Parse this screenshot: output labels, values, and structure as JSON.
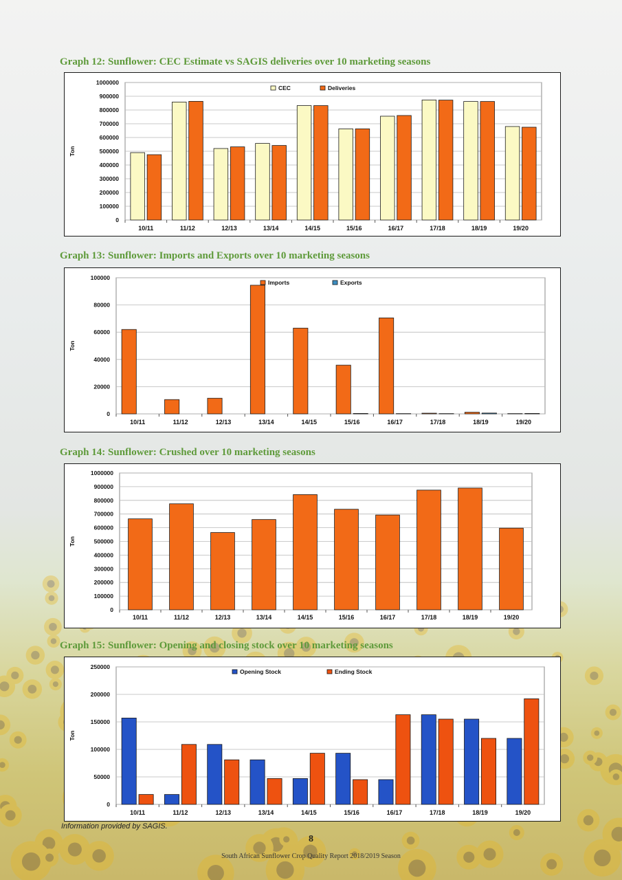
{
  "colors": {
    "heading": "#5e9a3a",
    "orange": "#f26a17",
    "cream": "#fbf9c4",
    "blue": "#2453c7"
  },
  "chart_data": [
    {
      "type": "bar",
      "heading": "Graph 12: Sunflower: CEC Estimate vs SAGIS deliveries over 10 marketing seasons",
      "ylabel": "Ton",
      "ylim": [
        0,
        1000000
      ],
      "yticks": [
        0,
        100000,
        200000,
        300000,
        400000,
        500000,
        600000,
        700000,
        800000,
        900000,
        1000000
      ],
      "categories": [
        "10/11",
        "11/12",
        "12/13",
        "13/14",
        "14/15",
        "15/16",
        "16/17",
        "17/18",
        "18/19",
        "19/20"
      ],
      "series": [
        {
          "name": "CEC",
          "color": "#fbf9c4",
          "values": [
            490000,
            858000,
            520000,
            557000,
            832000,
            663000,
            755000,
            873000,
            862000,
            680000
          ]
        },
        {
          "name": "Deliveries",
          "color": "#f26a17",
          "values": [
            475000,
            863000,
            532000,
            542000,
            832000,
            663000,
            760000,
            872000,
            862000,
            675000
          ]
        }
      ],
      "legend": "top-center",
      "grid": true
    },
    {
      "type": "bar",
      "heading": "Graph 13: Sunflower: Imports and Exports over 10 marketing seasons",
      "ylabel": "Ton",
      "ylim": [
        0,
        100000
      ],
      "yticks": [
        0,
        20000,
        40000,
        60000,
        80000,
        100000
      ],
      "categories": [
        "10/11",
        "11/12",
        "12/13",
        "13/14",
        "14/15",
        "15/16",
        "16/17",
        "17/18",
        "18/19",
        "19/20"
      ],
      "series": [
        {
          "name": "Imports",
          "color": "#f26a17",
          "values": [
            62000,
            10500,
            11500,
            94500,
            63000,
            35800,
            70500,
            500,
            1200,
            200
          ]
        },
        {
          "name": "Exports",
          "color": "#3d8ec0",
          "values": [
            0,
            0,
            0,
            0,
            0,
            300,
            200,
            200,
            600,
            300
          ]
        }
      ],
      "legend": "top-center",
      "grid": true
    },
    {
      "type": "bar",
      "heading": "Graph 14: Sunflower: Crushed over 10 marketing seasons",
      "ylabel": "Ton",
      "ylim": [
        0,
        1000000
      ],
      "yticks": [
        0,
        100000,
        200000,
        300000,
        400000,
        500000,
        600000,
        700000,
        800000,
        900000,
        1000000
      ],
      "categories": [
        "10/11",
        "11/12",
        "12/13",
        "13/14",
        "14/15",
        "15/16",
        "16/17",
        "17/18",
        "18/19",
        "19/20"
      ],
      "series": [
        {
          "color": "#f26a17",
          "values": [
            665000,
            775000,
            565000,
            660000,
            842000,
            735000,
            693000,
            875000,
            890000,
            597000
          ]
        }
      ],
      "grid": true
    },
    {
      "type": "bar",
      "heading": "Graph 15: Sunflower: Opening and closing stock over 10 marketing seasons",
      "ylabel": "Ton",
      "ylim": [
        0,
        250000
      ],
      "yticks": [
        0,
        50000,
        100000,
        150000,
        200000,
        250000
      ],
      "categories": [
        "10/11",
        "11/12",
        "12/13",
        "13/14",
        "14/15",
        "15/16",
        "16/17",
        "17/18",
        "18/19",
        "19/20"
      ],
      "series": [
        {
          "name": "Opening Stock",
          "color": "#2453c7",
          "values": [
            157000,
            18000,
            109000,
            81000,
            47000,
            93000,
            45000,
            163000,
            155000,
            120000
          ]
        },
        {
          "name": "Ending Stock",
          "color": "#ee5210",
          "values": [
            18000,
            109000,
            81000,
            47000,
            93000,
            45000,
            163000,
            155000,
            120000,
            192000
          ]
        }
      ],
      "legend": "top-center",
      "grid": true
    }
  ],
  "footnote": "Information provided by SAGIS.",
  "page_number": "8",
  "footer": "South African Sunflower Crop Quality Report 2018/2019 Season"
}
